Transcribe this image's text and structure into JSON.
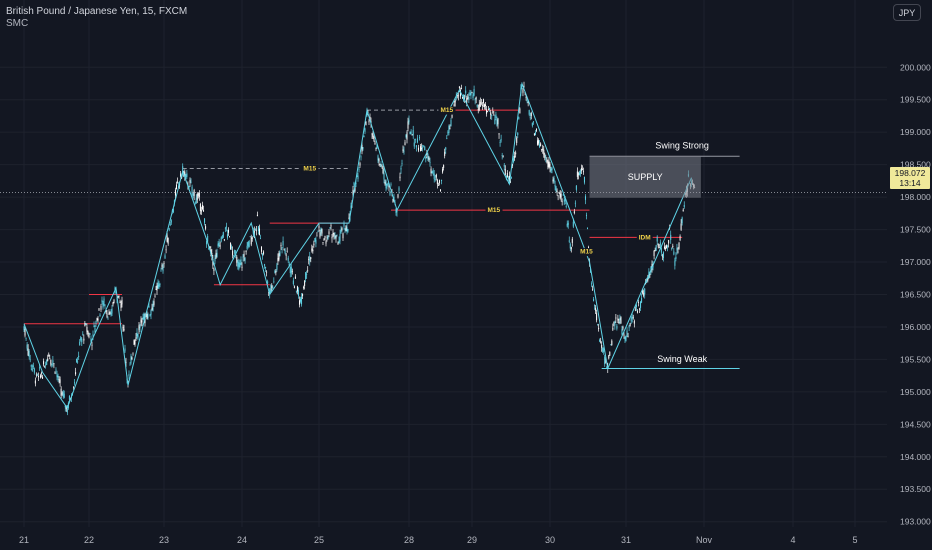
{
  "header": {
    "symbol": "British Pound / Japanese Yen, 15, FXCM",
    "indicator": "SMC"
  },
  "currency_button": "JPY",
  "last_price": {
    "value": "198.072",
    "countdown": "13:14"
  },
  "chart_data": {
    "type": "candlestick",
    "symbol": "GBPJPY",
    "timeframe": "15",
    "x_ticks": [
      "21",
      "22",
      "23",
      "24",
      "25",
      "28",
      "29",
      "30",
      "31",
      "Nov",
      "4",
      "5"
    ],
    "y_ticks": [
      "200.000",
      "199.500",
      "199.000",
      "198.500",
      "198.000",
      "197.500",
      "197.000",
      "196.500",
      "196.000",
      "195.500",
      "195.000",
      "194.500",
      "194.000",
      "193.500",
      "193.000"
    ],
    "ylim": [
      192.98,
      200.42
    ],
    "last_price": 198.072,
    "price_path": [
      [
        0,
        196.0
      ],
      [
        2,
        195.5
      ],
      [
        4,
        195.2
      ],
      [
        6,
        195.3
      ],
      [
        8,
        195.6
      ],
      [
        10,
        195.4
      ],
      [
        12,
        195.0
      ],
      [
        14,
        194.75
      ],
      [
        16,
        195.1
      ],
      [
        18,
        195.7
      ],
      [
        20,
        196.0
      ],
      [
        22,
        195.8
      ],
      [
        24,
        196.2
      ],
      [
        26,
        196.4
      ],
      [
        28,
        196.1
      ],
      [
        30,
        196.6
      ],
      [
        32,
        196.3
      ],
      [
        34,
        195.1
      ],
      [
        36,
        195.8
      ],
      [
        38,
        196.0
      ],
      [
        40,
        196.2
      ],
      [
        42,
        196.3
      ],
      [
        44,
        196.6
      ],
      [
        46,
        197.0
      ],
      [
        48,
        197.6
      ],
      [
        50,
        198.1
      ],
      [
        52,
        198.4
      ],
      [
        54,
        198.2
      ],
      [
        56,
        198.0
      ],
      [
        58,
        197.9
      ],
      [
        60,
        197.3
      ],
      [
        62,
        196.95
      ],
      [
        64,
        197.3
      ],
      [
        66,
        197.5
      ],
      [
        68,
        197.2
      ],
      [
        70,
        196.9
      ],
      [
        72,
        197.1
      ],
      [
        74,
        197.4
      ],
      [
        76,
        197.6
      ],
      [
        78,
        197.1
      ],
      [
        80,
        196.5
      ],
      [
        82,
        196.9
      ],
      [
        84,
        197.3
      ],
      [
        86,
        197.05
      ],
      [
        88,
        196.7
      ],
      [
        90,
        196.4
      ],
      [
        92,
        196.9
      ],
      [
        94,
        197.2
      ],
      [
        96,
        197.5
      ],
      [
        98,
        197.3
      ],
      [
        100,
        197.5
      ],
      [
        102,
        197.3
      ],
      [
        104,
        197.45
      ],
      [
        106,
        197.6
      ],
      [
        108,
        198.2
      ],
      [
        110,
        198.6
      ],
      [
        112,
        199.3
      ],
      [
        114,
        199.0
      ],
      [
        116,
        198.6
      ],
      [
        118,
        198.3
      ],
      [
        120,
        198.1
      ],
      [
        122,
        197.8
      ],
      [
        124,
        198.7
      ],
      [
        126,
        199.1
      ],
      [
        128,
        198.85
      ],
      [
        130,
        198.8
      ],
      [
        132,
        198.6
      ],
      [
        134,
        198.3
      ],
      [
        136,
        198.1
      ],
      [
        138,
        198.9
      ],
      [
        140,
        199.3
      ],
      [
        142,
        199.65
      ],
      [
        144,
        199.55
      ],
      [
        146,
        199.6
      ],
      [
        148,
        199.45
      ],
      [
        150,
        199.4
      ],
      [
        152,
        199.3
      ],
      [
        154,
        199.2
      ],
      [
        156,
        198.6
      ],
      [
        158,
        198.2
      ],
      [
        160,
        198.7
      ],
      [
        162,
        199.75
      ],
      [
        164,
        199.4
      ],
      [
        166,
        199.05
      ],
      [
        168,
        198.8
      ],
      [
        170,
        198.6
      ],
      [
        172,
        198.3
      ],
      [
        174,
        198.0
      ],
      [
        176,
        197.9
      ],
      [
        178,
        197.2
      ],
      [
        180,
        198.3
      ],
      [
        182,
        198.5
      ],
      [
        184,
        197.0
      ],
      [
        186,
        196.2
      ],
      [
        188,
        195.7
      ],
      [
        190,
        195.4
      ],
      [
        192,
        196.0
      ],
      [
        194,
        196.1
      ],
      [
        196,
        195.8
      ],
      [
        198,
        196.1
      ],
      [
        200,
        196.3
      ],
      [
        202,
        196.6
      ],
      [
        204,
        196.9
      ],
      [
        206,
        197.3
      ],
      [
        208,
        197.1
      ],
      [
        210,
        197.4
      ],
      [
        212,
        197.0
      ],
      [
        214,
        197.6
      ],
      [
        216,
        198.3
      ],
      [
        218,
        198.1
      ]
    ],
    "annotations": [
      {
        "type": "label",
        "text": "M15",
        "x": 93,
        "y": 198.44
      },
      {
        "type": "label",
        "text": "M15",
        "x": 138,
        "y": 199.34
      },
      {
        "type": "label",
        "text": "M15",
        "x": 153,
        "y": 197.8
      },
      {
        "type": "label",
        "text": "M15",
        "x": 183,
        "y": 197.16
      },
      {
        "type": "label",
        "text": "IDM",
        "x": 202,
        "y": 197.38
      },
      {
        "type": "zone",
        "text": "SUPPLY",
        "x0": 184,
        "x1": 220,
        "y0": 197.99,
        "y1": 198.63
      },
      {
        "type": "label",
        "text": "Swing Strong",
        "x": 214,
        "y": 198.75
      },
      {
        "type": "label",
        "text": "Swing Weak",
        "x": 214,
        "y": 195.46
      }
    ]
  }
}
